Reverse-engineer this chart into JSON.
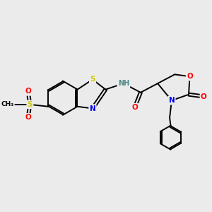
{
  "background_color": "#ebebeb",
  "bond_color": "#000000",
  "atom_colors": {
    "S": "#cccc00",
    "N": "#0000ee",
    "O": "#ff0000",
    "H": "#4a8888",
    "C": "#000000"
  }
}
